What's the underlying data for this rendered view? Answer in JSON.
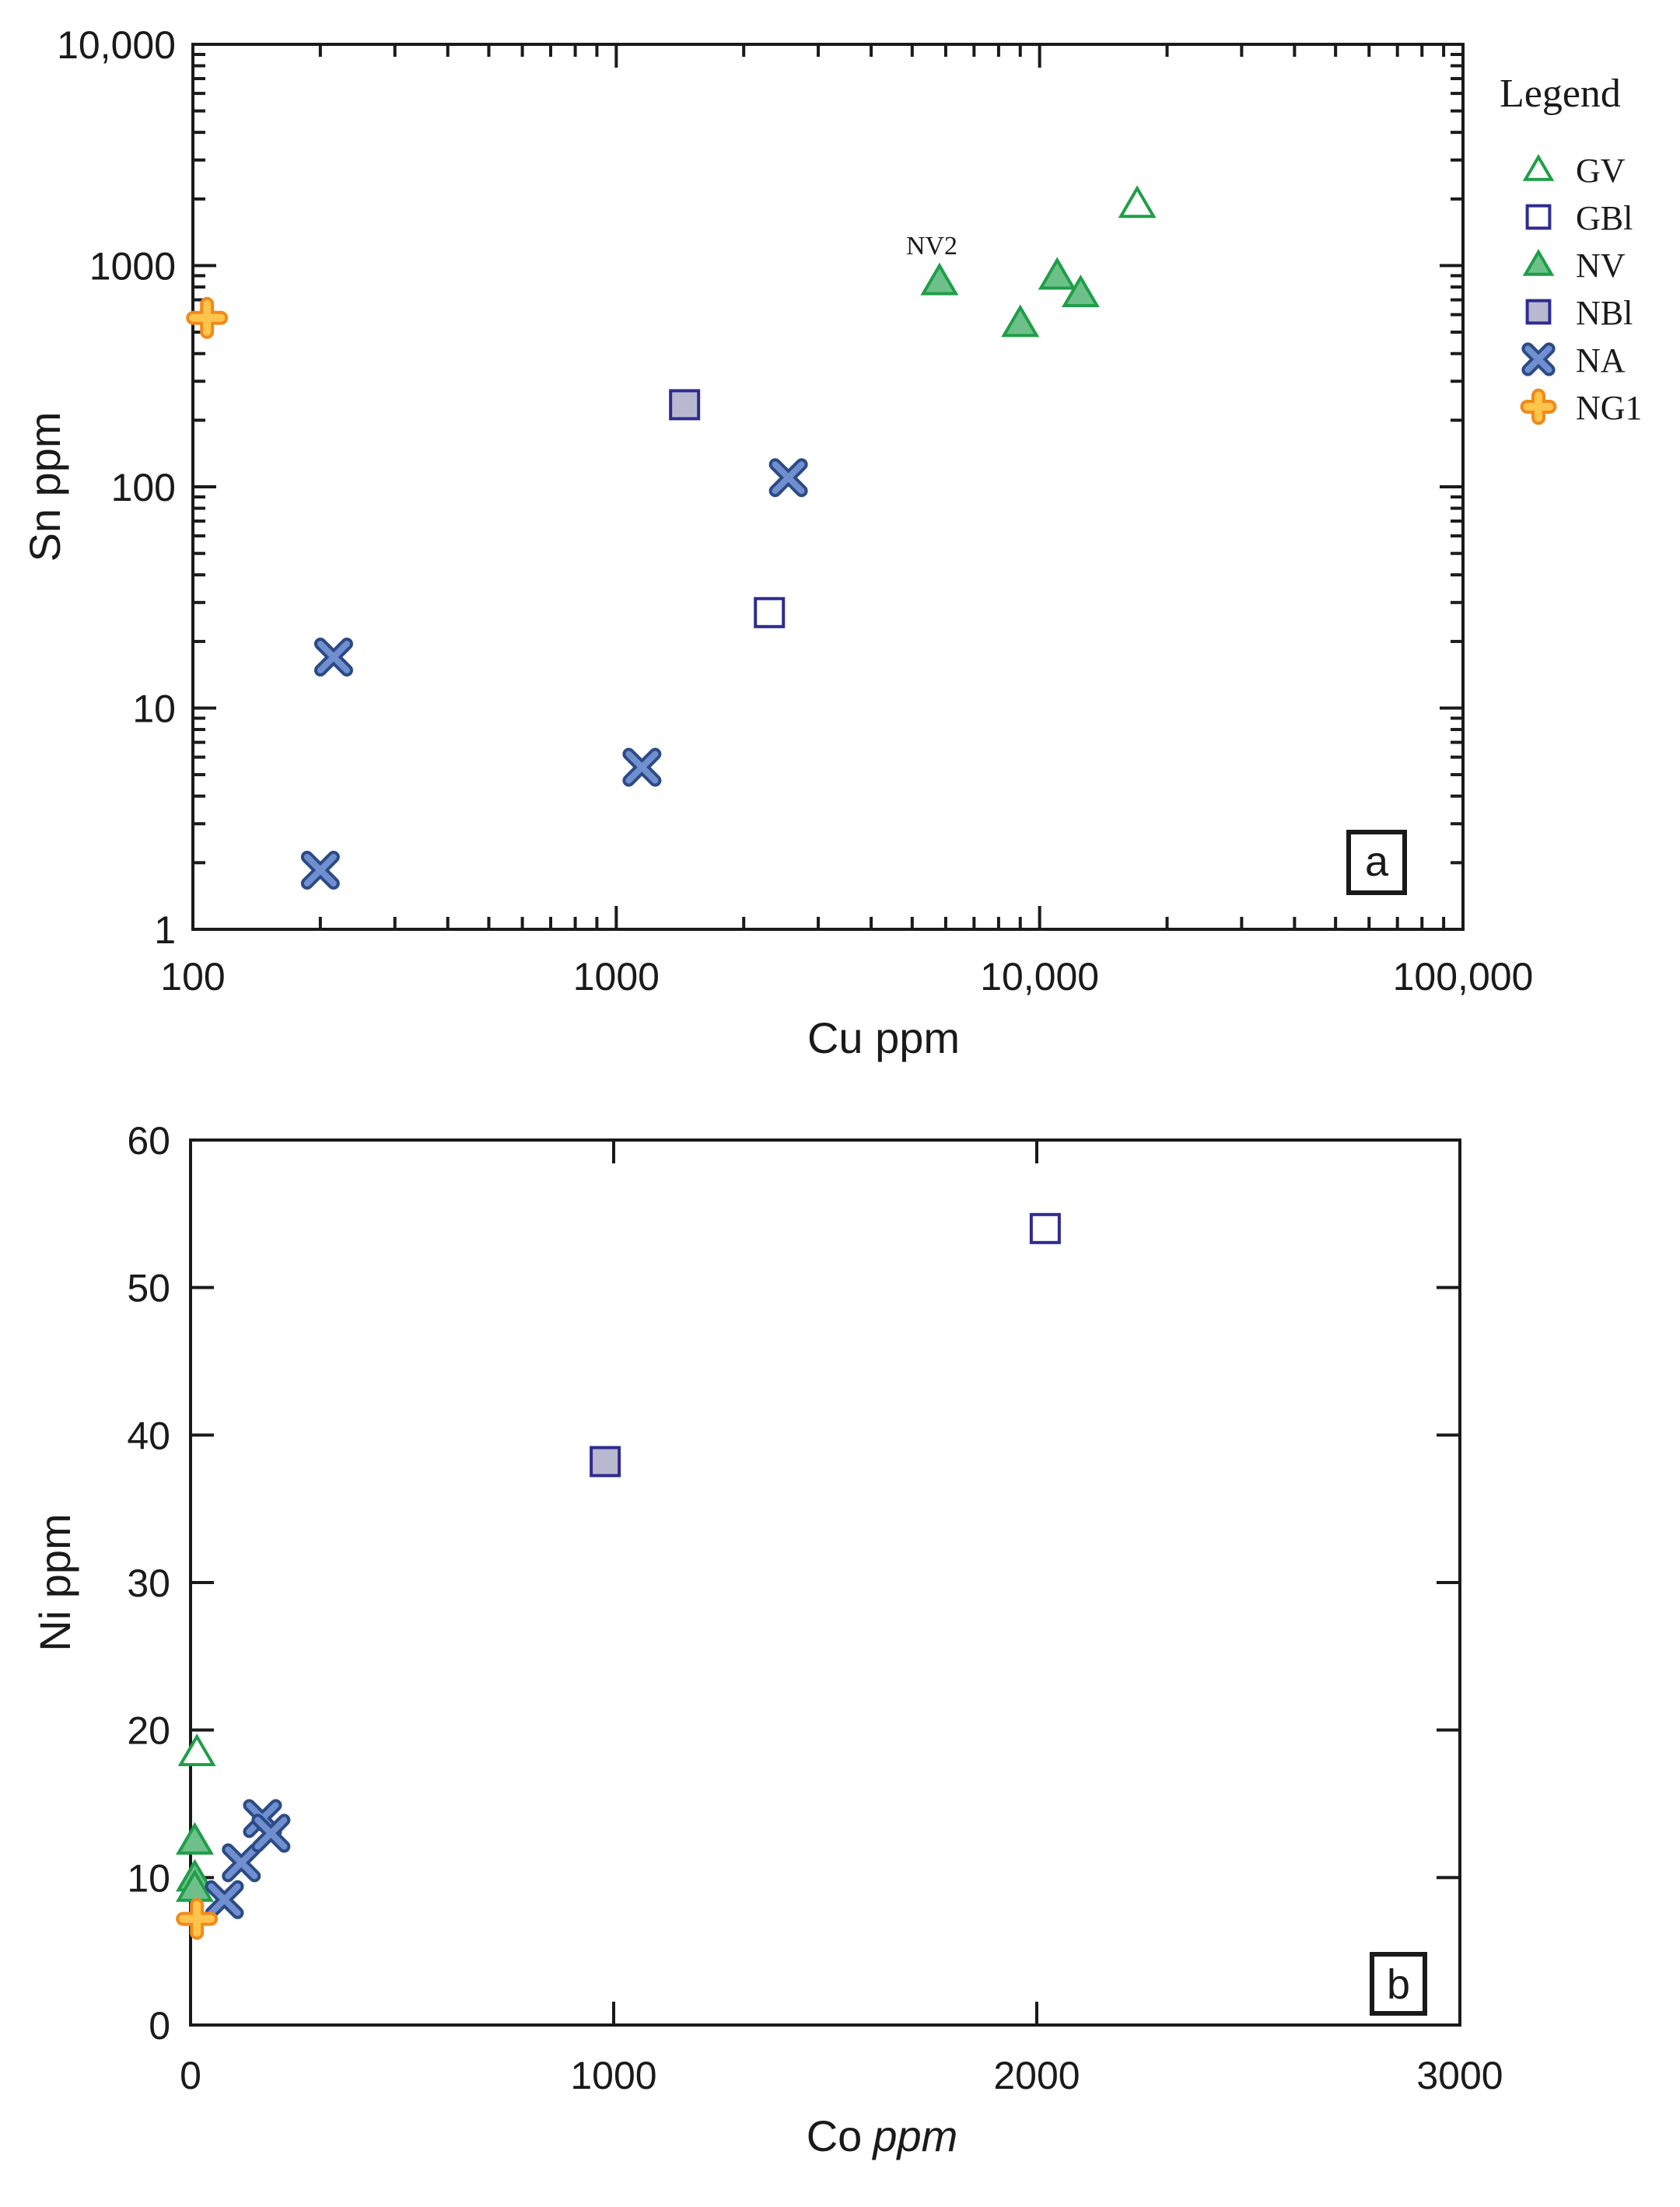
{
  "legend": {
    "title": "Legend",
    "items": [
      {
        "label": "GV",
        "marker": "triangle",
        "filled": false
      },
      {
        "label": "GBl",
        "marker": "square",
        "filled": false
      },
      {
        "label": "NV",
        "marker": "triangle",
        "filled": true
      },
      {
        "label": "NBl",
        "marker": "square",
        "filled": true
      },
      {
        "label": "NA",
        "marker": "cross",
        "filled": true
      },
      {
        "label": "NG1",
        "marker": "plus",
        "filled": true
      }
    ]
  },
  "colors": {
    "green_edge": "#1f9e48",
    "green_fill": "#6ec08a",
    "purple_edge": "#2f2b8f",
    "purple_fill": "#b8b8d0",
    "blue_edge": "#2c4a86",
    "blue_fill": "#6f8fcf",
    "orange_edge": "#f08a1c",
    "orange_fill": "#ffc44a"
  },
  "chart_data": [
    {
      "type": "scatter",
      "panel_label": "a",
      "xlabel": "Cu ppm",
      "ylabel": "Sn ppm",
      "xscale": "log",
      "yscale": "log",
      "xlim": [
        100,
        100000
      ],
      "ylim": [
        1,
        10000
      ],
      "x_tick_labels": [
        "100",
        "1000",
        "10,000",
        "100,000"
      ],
      "y_tick_labels": [
        "1",
        "10",
        "100",
        "1000",
        "10,000"
      ],
      "annotations": [
        {
          "text": "NV2",
          "x": 5800,
          "y": 1300
        }
      ],
      "series": [
        {
          "name": "GV",
          "points": [
            [
              17000,
              1900
            ]
          ]
        },
        {
          "name": "GBl",
          "points": [
            [
              2300,
              27
            ]
          ]
        },
        {
          "name": "NV",
          "points": [
            [
              5800,
              850
            ],
            [
              9000,
              550
            ],
            [
              11000,
              900
            ],
            [
              12500,
              750
            ]
          ]
        },
        {
          "name": "NBl",
          "points": [
            [
              1450,
              235
            ]
          ]
        },
        {
          "name": "NA",
          "points": [
            [
              200,
              1.85
            ],
            [
              215,
              17
            ],
            [
              1150,
              5.4
            ],
            [
              2550,
              110
            ]
          ]
        },
        {
          "name": "NG1",
          "points": [
            [
              108,
              580
            ]
          ]
        }
      ]
    },
    {
      "type": "scatter",
      "panel_label": "b",
      "xlabel": "Co",
      "xlabel_italic": "ppm",
      "ylabel": "Ni ppm",
      "xscale": "linear",
      "yscale": "linear",
      "xlim": [
        0,
        3000
      ],
      "ylim": [
        0,
        60
      ],
      "x_tick_labels": [
        "0",
        "1000",
        "2000",
        "3000"
      ],
      "y_tick_labels": [
        "0",
        "10",
        "20",
        "30",
        "40",
        "50",
        "60"
      ],
      "series": [
        {
          "name": "GV",
          "points": [
            [
              15,
              18.5
            ]
          ]
        },
        {
          "name": "GBl",
          "points": [
            [
              2020,
              54
            ]
          ]
        },
        {
          "name": "NV",
          "points": [
            [
              10,
              12.5
            ],
            [
              10,
              10
            ],
            [
              10,
              9.3
            ]
          ]
        },
        {
          "name": "NBl",
          "points": [
            [
              980,
              38.2
            ]
          ]
        },
        {
          "name": "NA",
          "points": [
            [
              80,
              8.5
            ],
            [
              120,
              11
            ],
            [
              170,
              14
            ],
            [
              190,
              13
            ]
          ]
        },
        {
          "name": "NG1",
          "points": [
            [
              15,
              7.2
            ]
          ]
        }
      ]
    }
  ]
}
